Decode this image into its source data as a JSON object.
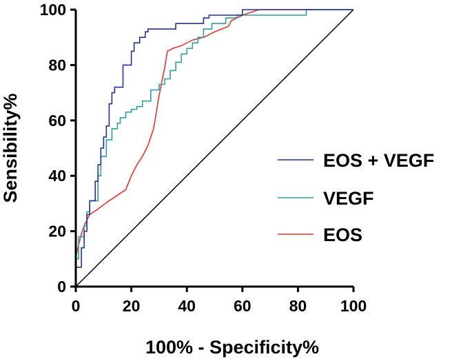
{
  "chart_data": {
    "type": "line",
    "title": "",
    "xlabel": "100% - Specificity%",
    "ylabel": "Sensibility%",
    "xlim": [
      0,
      100
    ],
    "ylim": [
      0,
      100
    ],
    "xticks": [
      0,
      20,
      40,
      60,
      80,
      100
    ],
    "yticks": [
      0,
      20,
      40,
      60,
      80,
      100
    ],
    "legend_position": "right",
    "reference_line": {
      "x": [
        0,
        100
      ],
      "y": [
        0,
        100
      ],
      "color": "#000000"
    },
    "series": [
      {
        "name": "EOS + VEGF",
        "color": "#1f2fa8",
        "points": [
          [
            0,
            0
          ],
          [
            0,
            7
          ],
          [
            2,
            7
          ],
          [
            2,
            14
          ],
          [
            3,
            14
          ],
          [
            3,
            20
          ],
          [
            4,
            20
          ],
          [
            4,
            26
          ],
          [
            5,
            26
          ],
          [
            5,
            31
          ],
          [
            7,
            31
          ],
          [
            7,
            38
          ],
          [
            8,
            38
          ],
          [
            8,
            44
          ],
          [
            9,
            44
          ],
          [
            9,
            50
          ],
          [
            10,
            50
          ],
          [
            10,
            54
          ],
          [
            11,
            54
          ],
          [
            11,
            58
          ],
          [
            12,
            58
          ],
          [
            12,
            66
          ],
          [
            13,
            66
          ],
          [
            13,
            70
          ],
          [
            14,
            70
          ],
          [
            14,
            72
          ],
          [
            17,
            72
          ],
          [
            17,
            80
          ],
          [
            20,
            80
          ],
          [
            20,
            85
          ],
          [
            21,
            85
          ],
          [
            21,
            88
          ],
          [
            23,
            88
          ],
          [
            23,
            90
          ],
          [
            25,
            90
          ],
          [
            25,
            92
          ],
          [
            26,
            92
          ],
          [
            26,
            93
          ],
          [
            36,
            93
          ],
          [
            36,
            95
          ],
          [
            46,
            95
          ],
          [
            46,
            97
          ],
          [
            48,
            97
          ],
          [
            48,
            98
          ],
          [
            60,
            98
          ],
          [
            60,
            100
          ],
          [
            100,
            100
          ]
        ]
      },
      {
        "name": "VEGF",
        "color": "#2aa0a0",
        "points": [
          [
            0,
            0
          ],
          [
            0,
            10
          ],
          [
            1,
            10
          ],
          [
            1,
            18
          ],
          [
            3,
            18
          ],
          [
            3,
            22
          ],
          [
            4,
            22
          ],
          [
            4,
            27
          ],
          [
            5,
            27
          ],
          [
            5,
            31
          ],
          [
            8,
            31
          ],
          [
            8,
            40
          ],
          [
            9,
            40
          ],
          [
            9,
            47
          ],
          [
            11,
            47
          ],
          [
            11,
            53
          ],
          [
            13,
            53
          ],
          [
            13,
            57
          ],
          [
            15,
            57
          ],
          [
            15,
            59
          ],
          [
            16,
            59
          ],
          [
            16,
            61
          ],
          [
            18,
            61
          ],
          [
            18,
            63
          ],
          [
            20,
            63
          ],
          [
            20,
            64
          ],
          [
            22,
            64
          ],
          [
            22,
            65
          ],
          [
            24,
            65
          ],
          [
            24,
            67
          ],
          [
            27,
            67
          ],
          [
            27,
            71
          ],
          [
            30,
            71
          ],
          [
            30,
            73
          ],
          [
            32,
            73
          ],
          [
            32,
            75
          ],
          [
            34,
            75
          ],
          [
            34,
            78
          ],
          [
            36,
            78
          ],
          [
            36,
            81
          ],
          [
            38,
            81
          ],
          [
            38,
            84
          ],
          [
            40,
            84
          ],
          [
            40,
            86
          ],
          [
            42,
            86
          ],
          [
            42,
            88
          ],
          [
            44,
            88
          ],
          [
            44,
            90
          ],
          [
            46,
            90
          ],
          [
            46,
            93
          ],
          [
            49,
            93
          ],
          [
            49,
            95
          ],
          [
            54,
            95
          ],
          [
            54,
            97
          ],
          [
            58,
            97
          ],
          [
            58,
            98
          ],
          [
            83,
            98
          ],
          [
            83,
            100
          ],
          [
            100,
            100
          ]
        ]
      },
      {
        "name": "EOS",
        "color": "#e8312a",
        "points": [
          [
            0,
            11
          ],
          [
            1,
            15
          ],
          [
            2,
            19
          ],
          [
            3,
            22
          ],
          [
            5,
            26
          ],
          [
            8,
            28
          ],
          [
            12,
            31
          ],
          [
            18,
            35
          ],
          [
            20,
            40
          ],
          [
            22,
            44
          ],
          [
            24,
            47
          ],
          [
            26,
            51
          ],
          [
            28,
            57
          ],
          [
            29,
            63
          ],
          [
            30,
            69
          ],
          [
            31,
            74
          ],
          [
            32,
            79
          ],
          [
            33,
            85
          ],
          [
            35,
            86
          ],
          [
            38,
            87
          ],
          [
            42,
            89
          ],
          [
            46,
            90
          ],
          [
            50,
            92
          ],
          [
            55,
            94
          ],
          [
            56,
            96
          ],
          [
            60,
            98
          ],
          [
            63,
            99
          ],
          [
            66,
            100
          ],
          [
            100,
            100
          ]
        ]
      }
    ]
  }
}
